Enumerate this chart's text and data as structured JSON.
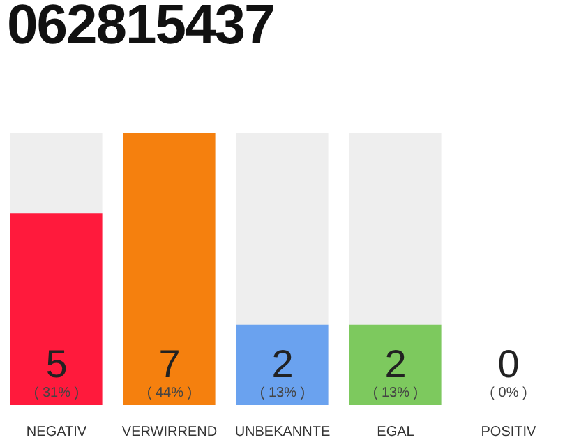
{
  "chart_data": {
    "type": "bar",
    "title": "062815437",
    "categories": [
      "NEGATIV",
      "VERWIRREND",
      "UNBEKANNTE",
      "EGAL",
      "POSITIV"
    ],
    "values": [
      31,
      44,
      13,
      13,
      0
    ],
    "colors": [
      "#ff1a3c",
      "#f5800e",
      "#6aa2ef",
      "#7dc95e",
      "#cccccc"
    ],
    "value_labels": [
      "( 31% )",
      "( 44% )",
      "( 13% )",
      "( 13% )",
      "( 0% )"
    ],
    "annotations": [
      "5",
      "7",
      "2",
      "2",
      "0"
    ]
  }
}
